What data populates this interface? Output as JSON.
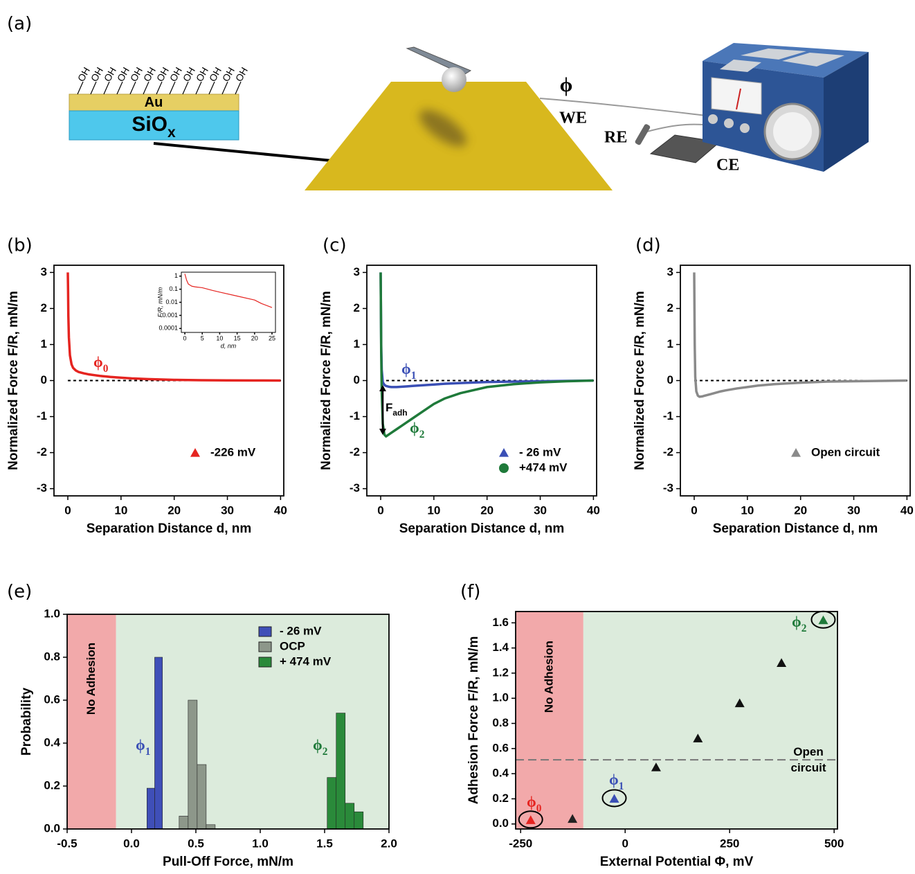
{
  "panel_a": {
    "label": "(a)",
    "surface_groups": [
      "OH",
      "OH",
      "OH",
      "OH",
      "OH",
      "OH",
      "OH",
      "OH",
      "OH",
      "OH",
      "OH",
      "OH",
      "OH"
    ],
    "layers": [
      {
        "text": "Au"
      },
      {
        "text": "SiO",
        "sub": "x"
      }
    ],
    "phi": "ϕ",
    "electrodes": [
      "WE",
      "RE",
      "CE"
    ]
  },
  "chart_data": [
    {
      "type": "line",
      "panel_label": "(b)",
      "xlabel": "Separation Distance d, nm",
      "ylabel": "Normalized Force F/R, mN/m",
      "xlim": [
        -2.6,
        40.6
      ],
      "ylim": [
        -3.2,
        3.2
      ],
      "xticks": [
        0,
        10,
        20,
        30,
        40
      ],
      "yticks": [
        -3,
        -2,
        -1,
        0,
        1,
        2,
        3
      ],
      "reference_line": 0,
      "legend": "lower right",
      "x": [
        0,
        0.05,
        0.1,
        0.2,
        0.4,
        0.7,
        1,
        1.5,
        2,
        3,
        4,
        5,
        6,
        8,
        10,
        12,
        15,
        20,
        25,
        30,
        35,
        40
      ],
      "series": [
        {
          "name": "-226 mV",
          "color": "#e52420",
          "marker": "triangle",
          "values": [
            3,
            2.5,
            1.8,
            1.2,
            0.7,
            0.45,
            0.35,
            0.28,
            0.24,
            0.2,
            0.17,
            0.15,
            0.13,
            0.1,
            0.08,
            0.06,
            0.04,
            0.02,
            0.01,
            0.005,
            0.002,
            0
          ]
        }
      ],
      "annotations": [
        {
          "text": "ϕ",
          "sub": "0",
          "color": "#e52420"
        }
      ]
    },
    {
      "type": "line",
      "log_y": true,
      "xlabel": "d, nm",
      "ylabel": "F/R, mN/m",
      "xlim": [
        -1,
        26
      ],
      "ylim": [
        5e-05,
        2
      ],
      "xticks": [
        0,
        5,
        10,
        15,
        20,
        25
      ],
      "yticks": [
        0.0001,
        0.001,
        0.01,
        0.1,
        1
      ],
      "x": [
        0,
        0.5,
        1,
        2,
        3,
        5,
        8,
        10,
        15,
        20,
        22,
        25
      ],
      "series": [
        {
          "name": "-226 mV",
          "color": "#e52420",
          "values": [
            1.5,
            0.5,
            0.25,
            0.17,
            0.15,
            0.13,
            0.08,
            0.06,
            0.03,
            0.015,
            0.008,
            0.004
          ]
        }
      ]
    },
    {
      "type": "line",
      "panel_label": "(c)",
      "xlabel": "Separation Distance d, nm",
      "ylabel": "Normalized Force F/R, mN/m",
      "xlim": [
        -2.6,
        40.6
      ],
      "ylim": [
        -3.2,
        3.2
      ],
      "xticks": [
        0,
        10,
        20,
        30,
        40
      ],
      "yticks": [
        -3,
        -2,
        -1,
        0,
        1,
        2,
        3
      ],
      "reference_line": 0,
      "legend": "lower right",
      "x": [
        0,
        0.05,
        0.1,
        0.2,
        0.4,
        0.7,
        1,
        1.5,
        2,
        3,
        4,
        5,
        6,
        8,
        10,
        12,
        15,
        20,
        25,
        30,
        35,
        40
      ],
      "series": [
        {
          "name": "- 26 mV",
          "color": "#3a4fb5",
          "marker": "triangle",
          "values": [
            3,
            2,
            1,
            0.3,
            -0.05,
            -0.12,
            -0.15,
            -0.17,
            -0.18,
            -0.18,
            -0.17,
            -0.16,
            -0.15,
            -0.13,
            -0.11,
            -0.09,
            -0.07,
            -0.04,
            -0.03,
            -0.02,
            -0.01,
            0
          ]
        },
        {
          "name": "+474 mV",
          "color": "#1f7a3a",
          "marker": "circle",
          "values": [
            3,
            2,
            0.8,
            -0.3,
            -1.2,
            -1.5,
            -1.55,
            -1.5,
            -1.45,
            -1.35,
            -1.25,
            -1.15,
            -1.05,
            -0.85,
            -0.65,
            -0.5,
            -0.35,
            -0.18,
            -0.1,
            -0.05,
            -0.02,
            0
          ]
        }
      ],
      "annotations": [
        {
          "text": "ϕ",
          "sub": "1",
          "color": "#3a4fb5"
        },
        {
          "text": "ϕ",
          "sub": "2",
          "color": "#1f7a3a"
        },
        {
          "text": "F",
          "sub": "adh",
          "color": "#000000"
        }
      ]
    },
    {
      "type": "line",
      "panel_label": "(d)",
      "xlabel": "Separation Distance d, nm",
      "ylabel": "Normalized Force F/R, mN/m",
      "xlim": [
        -2.6,
        40.6
      ],
      "ylim": [
        -3.2,
        3.2
      ],
      "xticks": [
        0,
        10,
        20,
        30,
        40
      ],
      "yticks": [
        -3,
        -2,
        -1,
        0,
        1,
        2,
        3
      ],
      "reference_line": 0,
      "legend": "lower right",
      "x": [
        0,
        0.05,
        0.1,
        0.2,
        0.4,
        0.7,
        1,
        1.5,
        2,
        3,
        4,
        5,
        6,
        8,
        10,
        12,
        15,
        20,
        25,
        30,
        35,
        40
      ],
      "series": [
        {
          "name": "Open circuit",
          "color": "#8a8a8a",
          "marker": "triangle",
          "values": [
            3,
            2,
            1,
            0.1,
            -0.3,
            -0.42,
            -0.45,
            -0.44,
            -0.42,
            -0.38,
            -0.34,
            -0.3,
            -0.27,
            -0.22,
            -0.18,
            -0.14,
            -0.1,
            -0.06,
            -0.03,
            -0.02,
            -0.01,
            0
          ]
        }
      ]
    },
    {
      "type": "histogram",
      "panel_label": "(e)",
      "xlabel": "Pull-Off Force, mN/m",
      "ylabel": "Probability",
      "xlim": [
        -0.5,
        2.0
      ],
      "ylim": [
        0,
        1.0
      ],
      "xticks": [
        -0.5,
        {
          "value": 0,
          "label": "0.0"
        },
        0.5,
        {
          "value": 1,
          "label": "1.0"
        },
        1.5,
        {
          "value": 2,
          "label": "2.0"
        }
      ],
      "yticks": [
        {
          "value": 0,
          "label": "0.0"
        },
        0.2,
        0.4,
        0.6,
        0.8,
        {
          "value": 1,
          "label": "1.0"
        }
      ],
      "legend": "upper right",
      "regions": [
        {
          "from": -0.5,
          "to": -0.12,
          "color": "#f2a9aa",
          "label": "No Adhesion"
        },
        {
          "from": -0.12,
          "to": 2.0,
          "color": "#dcebdc"
        }
      ],
      "series": [
        {
          "name": "- 26 mV",
          "color": "#3f4fb8",
          "bins": [
            0.12,
            0.18,
            0.24
          ],
          "values": [
            0.19,
            0.8
          ]
        },
        {
          "name": "OCP",
          "color": "#8d978a",
          "bins": [
            0.37,
            0.44,
            0.51,
            0.58,
            0.65
          ],
          "values": [
            0.06,
            0.6,
            0.3,
            0.02
          ]
        },
        {
          "name": "+ 474 mV",
          "color": "#2a8a3a",
          "bins": [
            1.52,
            1.59,
            1.66,
            1.73,
            1.8
          ],
          "values": [
            0.24,
            0.54,
            0.12,
            0.08
          ]
        }
      ],
      "annotations": [
        {
          "text": "ϕ",
          "sub": "1",
          "color": "#3a4fb5"
        },
        {
          "text": "ϕ",
          "sub": "2",
          "color": "#1f7a3a"
        }
      ]
    },
    {
      "type": "scatter",
      "panel_label": "(f)",
      "xlabel": "External Potential Φ, mV",
      "ylabel": "Adhesion Force F/R, mN/m",
      "xlim": [
        -262,
        508
      ],
      "ylim": [
        -0.04,
        1.69
      ],
      "xticks": [
        -250,
        0,
        250,
        500
      ],
      "yticks": [
        {
          "value": 0,
          "label": "0.0"
        },
        0.2,
        0.4,
        0.6,
        0.8,
        {
          "value": 1,
          "label": "1.0"
        },
        1.2,
        1.4,
        1.6
      ],
      "reference_line": 0.51,
      "regions": [
        {
          "from": -262,
          "to": -100,
          "color": "#f2a9aa",
          "label": "No Adhesion"
        },
        {
          "from": -100,
          "to": 508,
          "color": "#dcebdc"
        }
      ],
      "x": [
        -226,
        -126,
        -26,
        74,
        174,
        274,
        374,
        474
      ],
      "values": [
        0.03,
        0.04,
        0.2,
        0.45,
        0.68,
        0.96,
        1.28,
        1.62
      ],
      "colors": [
        "#e52420",
        "#222222",
        "#3a4fb5",
        "#111111",
        "#111111",
        "#111111",
        "#111111",
        "#1f7a3a"
      ],
      "annotations": [
        {
          "text": "ϕ",
          "sub": "0",
          "color": "#e52420"
        },
        {
          "text": "ϕ",
          "sub": "1",
          "color": "#3a4fb5"
        },
        {
          "text": "ϕ",
          "sub": "2",
          "color": "#1f7a3a"
        },
        {
          "text": "Open",
          "color": "#000000"
        },
        {
          "text": "circuit",
          "color": "#000000"
        }
      ]
    }
  ]
}
